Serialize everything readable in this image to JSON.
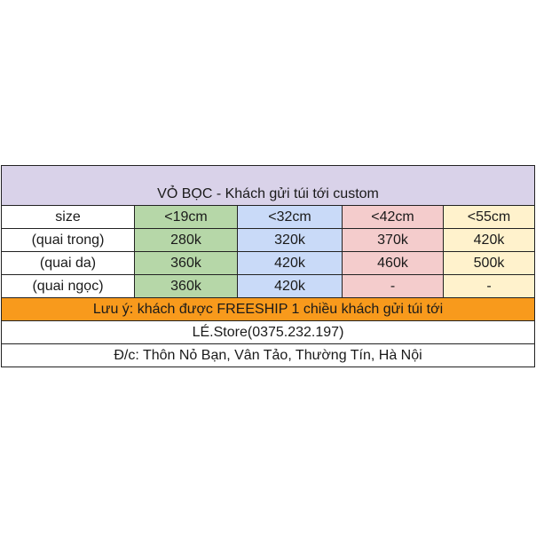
{
  "colors": {
    "title_bg": "#d9d2e9",
    "col1_bg": "#b6d7a8",
    "col2_bg": "#c9daf8",
    "col3_bg": "#f4cccc",
    "col4_bg": "#fff2cc",
    "note_bg": "#f89a1c",
    "plain_bg": "#ffffff"
  },
  "title": "VỎ BỌC - Khách gửi túi tới custom",
  "header": {
    "label": "size",
    "sizes": [
      "<19cm",
      "<32cm",
      "<42cm",
      "<55cm"
    ]
  },
  "rows": [
    {
      "label": "(quai trong)",
      "prices": [
        "280k",
        "320k",
        "370k",
        "420k"
      ]
    },
    {
      "label": "(quai da)",
      "prices": [
        "360k",
        "420k",
        "460k",
        "500k"
      ]
    },
    {
      "label": "(quai ngọc)",
      "prices": [
        "360k",
        "420k",
        "-",
        "-"
      ]
    }
  ],
  "note": "Lưu ý: khách được FREESHIP 1 chiều khách gửi túi tới",
  "store": "LÉ.Store(0375.232.197)",
  "address": "Đ/c: Thôn Nỏ Bạn, Vân Tảo, Thường Tín, Hà Nội"
}
